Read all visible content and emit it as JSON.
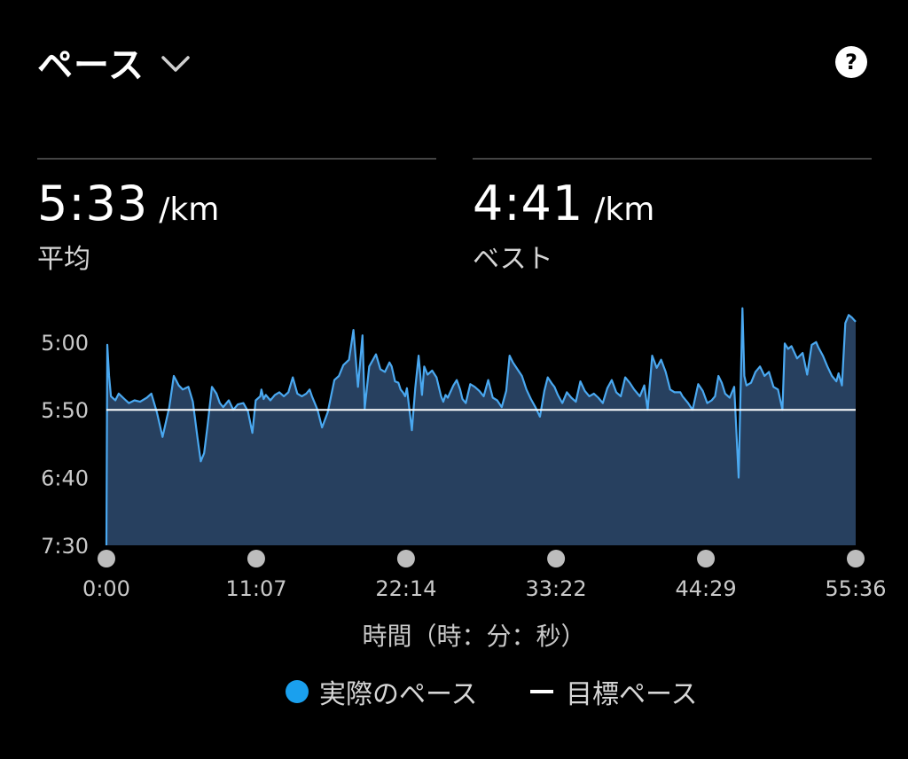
{
  "header": {
    "title": "ペース",
    "help_label": "?"
  },
  "stats": [
    {
      "value": "5:33",
      "unit": "/km",
      "label": "平均"
    },
    {
      "value": "4:41",
      "unit": "/km",
      "label": "ベスト"
    }
  ],
  "colors": {
    "actual_line": "#4aa8f0",
    "actual_fill": "#27405f",
    "target_line": "#ffffff",
    "legend_dot": "#1aa0ee",
    "axis_text": "#c9c9c9",
    "time_dot": "#bdbdbd",
    "background": "#000000"
  },
  "chart_data": {
    "type": "area",
    "xlabel": "時間（時：分：秒）",
    "xlim": [
      0,
      3336
    ],
    "x_ticks": [
      {
        "value": 0,
        "label": "0:00"
      },
      {
        "value": 667,
        "label": "11:07"
      },
      {
        "value": 1334,
        "label": "22:14"
      },
      {
        "value": 2002,
        "label": "33:22"
      },
      {
        "value": 2669,
        "label": "44:29"
      },
      {
        "value": 3336,
        "label": "55:36"
      }
    ],
    "ylim": [
      270,
      450
    ],
    "y_inverted": true,
    "y_ticks": [
      {
        "value": 300,
        "label": "5:00"
      },
      {
        "value": 350,
        "label": "5:50"
      },
      {
        "value": 400,
        "label": "6:40"
      },
      {
        "value": 450,
        "label": "7:30"
      }
    ],
    "grid": false,
    "legend_position": "bottom",
    "series": [
      {
        "name": "実際のペース",
        "x": [
          0,
          4,
          12,
          20,
          40,
          55,
          80,
          100,
          125,
          150,
          180,
          200,
          225,
          250,
          280,
          300,
          310,
          322,
          340,
          365,
          385,
          405,
          420,
          435,
          450,
          470,
          490,
          505,
          520,
          545,
          565,
          585,
          610,
          630,
          650,
          665,
          685,
          690,
          700,
          710,
          730,
          750,
          770,
          790,
          810,
          830,
          850,
          870,
          890,
          905,
          915,
          940,
          960,
          985,
          1015,
          1035,
          1055,
          1080,
          1100,
          1120,
          1140,
          1150,
          1170,
          1200,
          1220,
          1240,
          1260,
          1270,
          1285,
          1300,
          1310,
          1320,
          1330,
          1338,
          1348,
          1360,
          1375,
          1390,
          1405,
          1415,
          1430,
          1450,
          1470,
          1490,
          1500,
          1510,
          1520,
          1545,
          1560,
          1575,
          1585,
          1600,
          1620,
          1640,
          1660,
          1680,
          1700,
          1720,
          1740,
          1760,
          1780,
          1795,
          1810,
          1830,
          1850,
          1870,
          1890,
          1910,
          1930,
          1950,
          1965,
          1985,
          1995,
          2010,
          2030,
          2050,
          2070,
          2090,
          2110,
          2130,
          2150,
          2170,
          2190,
          2210,
          2230,
          2250,
          2270,
          2290,
          2310,
          2330,
          2350,
          2375,
          2395,
          2410,
          2430,
          2450,
          2470,
          2490,
          2510,
          2530,
          2545,
          2555,
          2565,
          2590,
          2610,
          2635,
          2655,
          2675,
          2695,
          2710,
          2725,
          2740,
          2755,
          2775,
          2795,
          2815,
          2832,
          2840,
          2850,
          2870,
          2890,
          2910,
          2930,
          2950,
          2970,
          2990,
          3010,
          3020,
          3035,
          3050,
          3075,
          3100,
          3120,
          3140,
          3160,
          3170,
          3190,
          3210,
          3230,
          3250,
          3260,
          3275,
          3290,
          3305,
          3320,
          3336
        ],
        "y": [
          450,
          302,
          325,
          340,
          343,
          338,
          342,
          345,
          343,
          344,
          341,
          338,
          352,
          370,
          348,
          325,
          328,
          332,
          335,
          333,
          344,
          370,
          388,
          382,
          362,
          333,
          338,
          345,
          348,
          343,
          350,
          346,
          345,
          351,
          367,
          343,
          340,
          335,
          342,
          339,
          343,
          339,
          337,
          340,
          337,
          326,
          338,
          340,
          338,
          335,
          340,
          350,
          363,
          352,
          328,
          325,
          317,
          313,
          291,
          333,
          295,
          349,
          318,
          309,
          320,
          322,
          315,
          318,
          329,
          330,
          335,
          337,
          340,
          334,
          348,
          365,
          334,
          310,
          339,
          318,
          324,
          321,
          326,
          340,
          344,
          339,
          341,
          332,
          328,
          335,
          342,
          345,
          331,
          333,
          336,
          340,
          328,
          341,
          343,
          348,
          336,
          310,
          315,
          320,
          325,
          335,
          342,
          348,
          355,
          336,
          326,
          331,
          333,
          339,
          345,
          337,
          341,
          344,
          329,
          336,
          340,
          338,
          341,
          345,
          334,
          328,
          337,
          340,
          326,
          330,
          335,
          340,
          332,
          350,
          310,
          319,
          313,
          322,
          335,
          337,
          337,
          337,
          340,
          345,
          350,
          331,
          336,
          345,
          343,
          340,
          325,
          330,
          338,
          341,
          333,
          400,
          275,
          325,
          332,
          330,
          322,
          318,
          325,
          322,
          333,
          335,
          350,
          301,
          305,
          303,
          312,
          308,
          324,
          302,
          300,
          304,
          310,
          318,
          325,
          329,
          323,
          332,
          286,
          280,
          282,
          285
        ]
      },
      {
        "name": "目標ペース",
        "x": [
          0,
          3336
        ],
        "y": [
          350,
          350
        ]
      }
    ]
  },
  "legend": [
    {
      "label": "実際のペース"
    },
    {
      "label": "目標ペース"
    }
  ]
}
